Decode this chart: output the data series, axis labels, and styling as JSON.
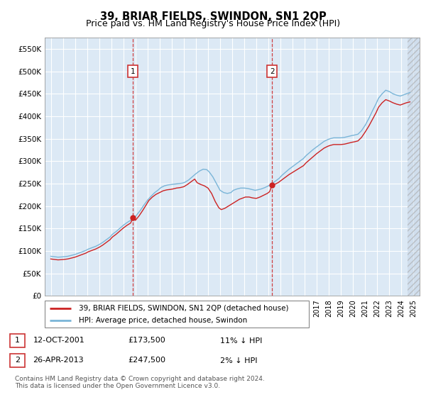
{
  "title": "39, BRIAR FIELDS, SWINDON, SN1 2QP",
  "subtitle": "Price paid vs. HM Land Registry's House Price Index (HPI)",
  "ylim": [
    0,
    575000
  ],
  "ytick_labels": [
    "£0",
    "£50K",
    "£100K",
    "£150K",
    "£200K",
    "£250K",
    "£300K",
    "£350K",
    "£400K",
    "£450K",
    "£500K",
    "£550K"
  ],
  "ytick_vals": [
    0,
    50000,
    100000,
    150000,
    200000,
    250000,
    300000,
    350000,
    400000,
    450000,
    500000,
    550000
  ],
  "plot_bg_color": "#dce9f5",
  "grid_color": "#ffffff",
  "hpi_color": "#7ab5d8",
  "price_color": "#cc2222",
  "sale1_x": 2001.8,
  "sale1_y": 173500,
  "sale2_x": 2013.3,
  "sale2_y": 247500,
  "legend_entry1": "39, BRIAR FIELDS, SWINDON, SN1 2QP (detached house)",
  "legend_entry2": "HPI: Average price, detached house, Swindon",
  "ann1_date": "12-OCT-2001",
  "ann1_price": "£173,500",
  "ann1_hpi": "11% ↓ HPI",
  "ann2_date": "26-APR-2013",
  "ann2_price": "£247,500",
  "ann2_hpi": "2% ↓ HPI",
  "footer": "Contains HM Land Registry data © Crown copyright and database right 2024.\nThis data is licensed under the Open Government Licence v3.0.",
  "box_edge_color": "#cc3333",
  "title_fontsize": 10.5,
  "subtitle_fontsize": 9,
  "axis_fontsize": 7.5,
  "legend_fontsize": 8,
  "ann_fontsize": 8,
  "footer_fontsize": 6.5,
  "xmin": 1994.5,
  "xmax": 2025.5
}
